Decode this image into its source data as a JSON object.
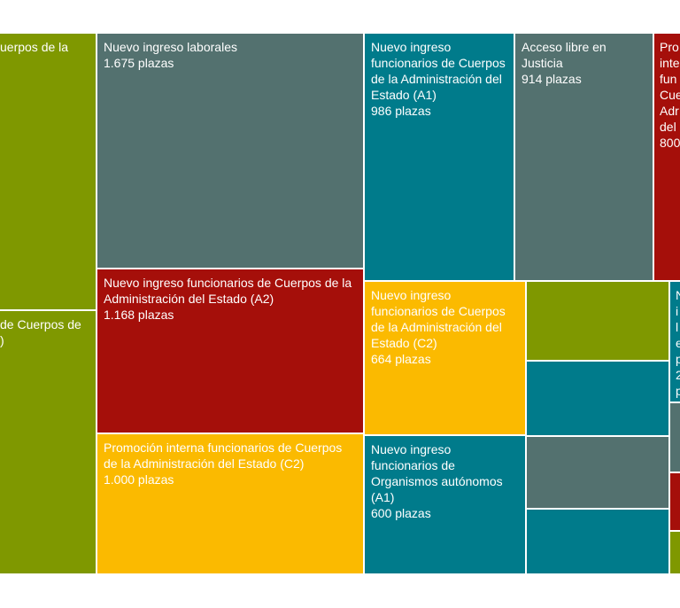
{
  "chart_data": {
    "type": "treemap",
    "cells": [
      {
        "label": "uerpos de la",
        "color": "#7f9800"
      },
      {
        "label": "de Cuerpos de\n)",
        "color": "#7f9800"
      },
      {
        "label": "Nuevo ingreso laborales",
        "value": 1675,
        "value_label": "1.675 plazas",
        "color": "#53716f"
      },
      {
        "label": "Nuevo ingreso funcionarios de Cuerpos de la Administración del Estado (A1)",
        "value": 986,
        "value_label": "986 plazas",
        "color": "#007b8b"
      },
      {
        "label": "Acceso libre en Justicia",
        "value": 914,
        "value_label": "914 plazas",
        "color": "#53716f"
      },
      {
        "label": "Pro\ninte\nfun\nCue\nAdr\ndel",
        "value": 800,
        "color": "#a50f0a"
      },
      {
        "label": "Nuevo ingreso funcionarios de Cuerpos de la Administración del Estado (A2)",
        "value": 1168,
        "value_label": "1.168 plazas",
        "color": "#a50f0a"
      },
      {
        "label": "Promoción interna funcionarios de Cuerpos de la Administración del Estado (C2)",
        "value": 1000,
        "value_label": "1.000 plazas",
        "color": "#fbba00"
      },
      {
        "label": "Nuevo ingreso funcionarios de Cuerpos de la Administración del Estado (C2)",
        "value": 664,
        "value_label": "664 plazas",
        "color": "#fbba00"
      },
      {
        "label": "Nuevo ingreso funcionarios de Organismos autónomos (A1)",
        "value": 600,
        "value_label": "600 plazas",
        "color": "#007b8b"
      },
      {
        "value": 298,
        "color": "#7f9800"
      },
      {
        "value": 281,
        "color": "#007b8b"
      },
      {
        "value": 271,
        "color": "#53716f"
      },
      {
        "value": 244,
        "color": "#007b8b"
      },
      {
        "label": "N\ni\nl\ne\np\n2\np",
        "color": "#007b8b"
      },
      {
        "color": "#53716f"
      },
      {
        "color": "#a50f0a"
      },
      {
        "color": "#7f9800"
      }
    ]
  }
}
